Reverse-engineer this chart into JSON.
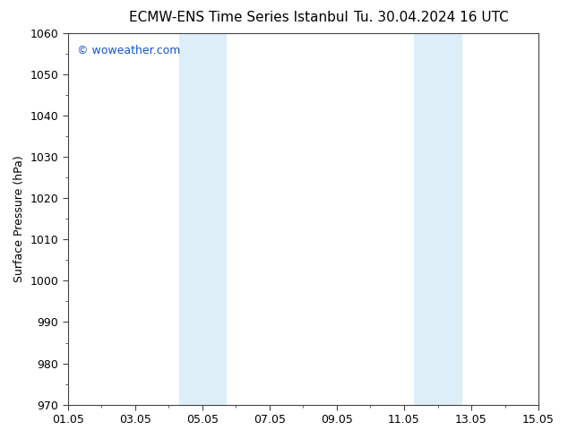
{
  "title": "ECMW-ENS Time Series Istanbul",
  "title2": "Tu. 30.04.2024 16 UTC",
  "ylabel": "Surface Pressure (hPa)",
  "ylim": [
    970,
    1060
  ],
  "yticks": [
    970,
    980,
    990,
    1000,
    1010,
    1020,
    1030,
    1040,
    1050,
    1060
  ],
  "xlim": [
    0,
    14
  ],
  "xtick_positions": [
    0,
    2,
    4,
    6,
    8,
    10,
    12,
    14
  ],
  "xtick_labels": [
    "01.05",
    "03.05",
    "05.05",
    "07.05",
    "09.05",
    "11.05",
    "13.05",
    "15.05"
  ],
  "shade_bands": [
    {
      "xmin": 3.3,
      "xmax": 4.7
    },
    {
      "xmin": 10.3,
      "xmax": 11.7
    }
  ],
  "shade_color": "#deeef8",
  "watermark": "© woweather.com",
  "watermark_color": "#1155cc",
  "bg_color": "#ffffff",
  "spine_color": "#444444",
  "title_fontsize": 11,
  "axis_label_fontsize": 9,
  "tick_fontsize": 9,
  "watermark_fontsize": 9
}
